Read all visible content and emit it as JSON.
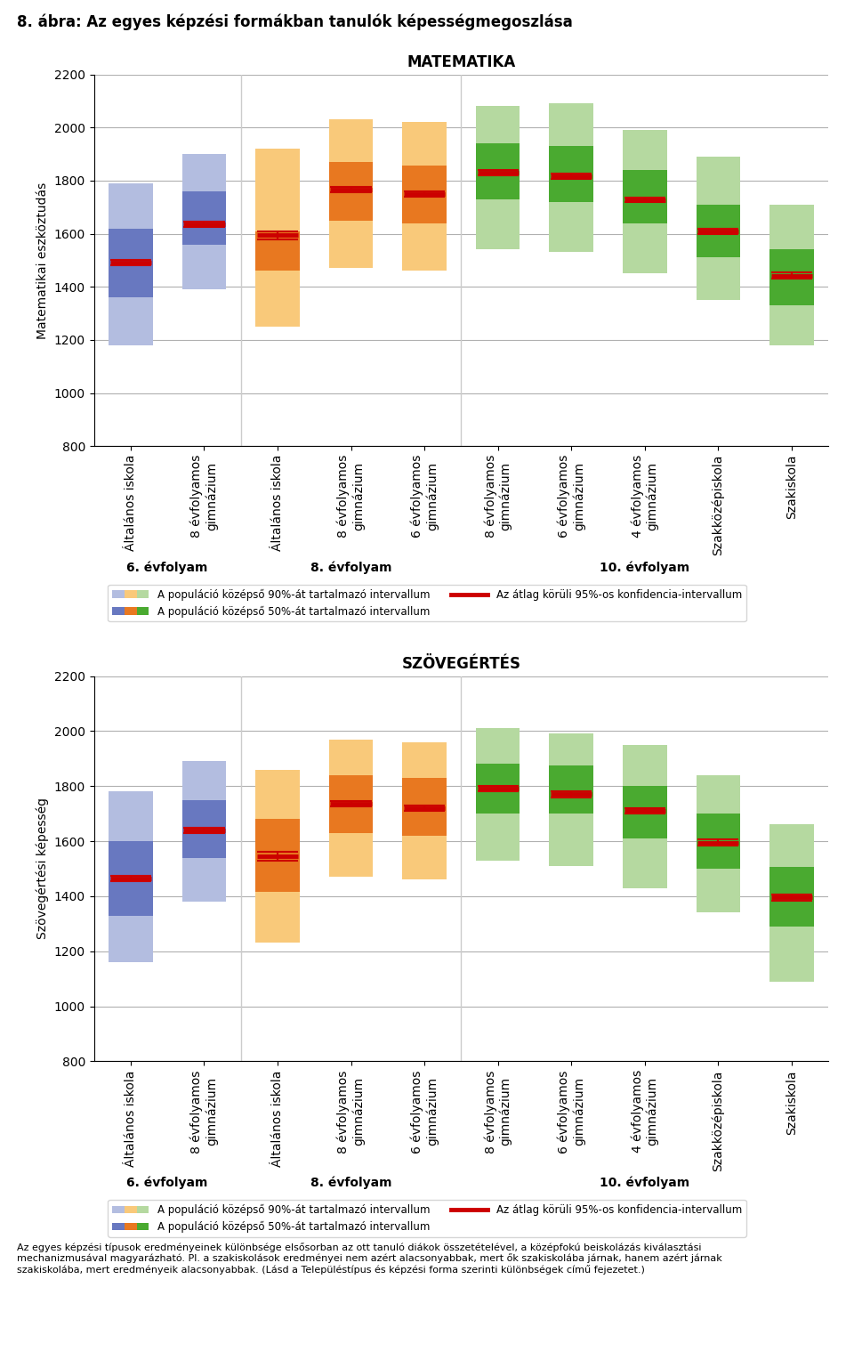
{
  "title": "8. ábra: Az egyes képzési formákban tanulók képességmegoszlása",
  "note": "Az egyes képzési típusok eredményeinek különbsége elsősorban az ott tanuló diákok összetételével, a középfokú beiskolázás kiválasztási\nmechanizmusával magyarázható. Pl. a szakiskolások eredményei nem azért alacsonyabbak, mert ők szakiskolába járnak, hanem azért járnak\nszakiskolába, mert eredményeik alacsonyabbak. (Lásd a Településtípus és képzési forma szerinti különbségek című fejezetet.)",
  "chart_data": [
    {
      "type": "bar",
      "title": "MATEMATIKA",
      "y_label": "Matematikai eszköztudás",
      "categories": [
        "Általános iskola",
        "8 évfolyamos\ngimnázium",
        "Általános iskola",
        "8 évfolyamos\ngimnázium",
        "6 évfolyamos\ngimnázium",
        "8 évfolyamos\ngimnázium",
        "6 évfolyamos\ngimnázium",
        "4 évfolyamos\ngimnázium",
        "Szakközépiskola",
        "Szakiskola"
      ],
      "groups": [
        "6. évfolyam",
        "6. évfolyam",
        "8. évfolyam",
        "8. évfolyam",
        "8. évfolyam",
        "10. évfolyam",
        "10. évfolyam",
        "10. évfolyam",
        "10. évfolyam",
        "10. évfolyam"
      ],
      "ylim": [
        800,
        2200
      ],
      "yticks": [
        800,
        1000,
        1200,
        1400,
        1600,
        1800,
        2000,
        2200
      ],
      "grid": true,
      "legend": "bottom",
      "series": [
        {
          "name": "A populáció középső 90%-át tartalmazó intervallum",
          "type": "range",
          "low": [
            1180,
            1390,
            1250,
            1470,
            1460,
            1540,
            1530,
            1450,
            1350,
            1180
          ],
          "high": [
            1790,
            1900,
            1920,
            2030,
            2020,
            2080,
            2090,
            1990,
            1890,
            1710
          ],
          "colors": [
            "#b3bde0",
            "#b3bde0",
            "#f9c97a",
            "#f9c97a",
            "#f9c97a",
            "#b5d9a0",
            "#b5d9a0",
            "#b5d9a0",
            "#b5d9a0",
            "#b5d9a0"
          ]
        },
        {
          "name": "A populáció középső 50%-át tartalmazó intervallum",
          "type": "range",
          "low": [
            1360,
            1560,
            1460,
            1650,
            1640,
            1730,
            1720,
            1640,
            1510,
            1330
          ],
          "high": [
            1620,
            1760,
            1610,
            1870,
            1855,
            1940,
            1930,
            1840,
            1710,
            1540
          ],
          "colors": [
            "#6878c0",
            "#6878c0",
            "#e87820",
            "#e87820",
            "#e87820",
            "#4aaa30",
            "#4aaa30",
            "#4aaa30",
            "#4aaa30",
            "#4aaa30"
          ]
        },
        {
          "name": "Az átlag körüli 95%-os konfidencia-intervallum",
          "type": "interval",
          "color": "#cc0000",
          "values": [
            1490,
            1635,
            1595,
            1765,
            1750,
            1830,
            1816.5,
            1726.5,
            1610,
            1442.5
          ],
          "low": [
            1480,
            1625,
            1580,
            1755,
            1740,
            1820,
            1808,
            1718,
            1600,
            1430
          ],
          "high": [
            1500,
            1645,
            1610,
            1775,
            1760,
            1840,
            1825,
            1735,
            1620,
            1455
          ]
        }
      ]
    },
    {
      "type": "bar",
      "title": "SZÖVEGÉRTÉS",
      "y_label": "Szövegértési képesség",
      "categories": [
        "Általános iskola",
        "8 évfolyamos\ngimnázium",
        "Általános iskola",
        "8 évfolyamos\ngimnázium",
        "6 évfolyamos\ngimnázium",
        "8 évfolyamos\ngimnázium",
        "6 évfolyamos\ngimnázium",
        "4 évfolyamos\ngimnázium",
        "Szakközépiskola",
        "Szakiskola"
      ],
      "groups": [
        "6. évfolyam",
        "6. évfolyam",
        "8. évfolyam",
        "8. évfolyam",
        "8. évfolyam",
        "10. évfolyam",
        "10. évfolyam",
        "10. évfolyam",
        "10. évfolyam",
        "10. évfolyam"
      ],
      "ylim": [
        800,
        2200
      ],
      "yticks": [
        800,
        1000,
        1200,
        1400,
        1600,
        1800,
        2000,
        2200
      ],
      "grid": true,
      "legend": "bottom",
      "series": [
        {
          "name": "A populáció középső 90%-át tartalmazó intervallum",
          "type": "range",
          "low": [
            1160,
            1380,
            1230,
            1470,
            1460,
            1530,
            1510,
            1430,
            1340,
            1090
          ],
          "high": [
            1780,
            1890,
            1860,
            1970,
            1960,
            2010,
            1990,
            1950,
            1840,
            1660
          ],
          "colors": [
            "#b3bde0",
            "#b3bde0",
            "#f9c97a",
            "#f9c97a",
            "#f9c97a",
            "#b5d9a0",
            "#b5d9a0",
            "#b5d9a0",
            "#b5d9a0",
            "#b5d9a0"
          ]
        },
        {
          "name": "A populáció középső 50%-át tartalmazó intervallum",
          "type": "range",
          "low": [
            1330,
            1540,
            1415,
            1630,
            1620,
            1700,
            1700,
            1610,
            1500,
            1290
          ],
          "high": [
            1600,
            1750,
            1680,
            1840,
            1830,
            1880,
            1875,
            1800,
            1700,
            1505
          ],
          "colors": [
            "#6878c0",
            "#6878c0",
            "#e87820",
            "#e87820",
            "#e87820",
            "#4aaa30",
            "#4aaa30",
            "#4aaa30",
            "#4aaa30",
            "#4aaa30"
          ]
        },
        {
          "name": "Az átlag körüli 95%-os konfidencia-intervallum",
          "type": "interval",
          "color": "#cc0000",
          "values": [
            1465,
            1640,
            1545,
            1735,
            1720,
            1790,
            1770,
            1710,
            1595,
            1395
          ],
          "low": [
            1455,
            1630,
            1530,
            1725,
            1710,
            1780,
            1760,
            1700,
            1585,
            1385
          ],
          "high": [
            1475,
            1650,
            1560,
            1745,
            1730,
            1800,
            1780,
            1720,
            1605,
            1405
          ]
        }
      ]
    }
  ]
}
